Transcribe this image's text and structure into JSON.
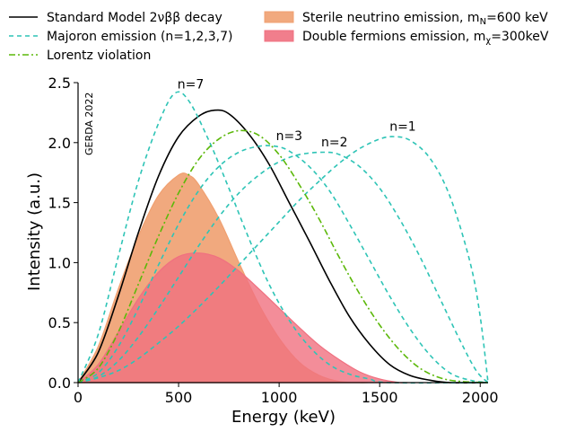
{
  "chart_data": {
    "type": "line",
    "title": "",
    "xlabel": "Energy (keV)",
    "ylabel": "Intensity (a.u.)",
    "xlim": [
      0,
      2039
    ],
    "ylim": [
      0,
      2.5
    ],
    "x_ticks": [
      "0",
      "500",
      "1000",
      "1500",
      "2000"
    ],
    "y_ticks": [
      "0.0",
      "0.5",
      "1.0",
      "1.5",
      "2.0",
      "2.5"
    ],
    "watermark": "GERDA 2022",
    "grid": false,
    "legend_placement": "top",
    "legend": [
      {
        "label": "Standard Model 2νββ decay",
        "style": "solid",
        "color": "#000000"
      },
      {
        "label": "Majoron emission (n=1,2,3,7)",
        "style": "dashed",
        "color": "#2ec4b6"
      },
      {
        "label": "Lorentz violation",
        "style": "dashdot",
        "color": "#5cb80a"
      },
      {
        "label": "Sterile neutrino emission, m",
        "sub": "N",
        "tail": "=600 keV",
        "style": "fill",
        "color": "#f0a070"
      },
      {
        "label": "Double fermions emission, m",
        "sub": "χ",
        "tail": "=300keV",
        "style": "fill",
        "color": "#f07080"
      }
    ],
    "annotations": [
      {
        "text": "n=7",
        "x": 560,
        "y": 2.45
      },
      {
        "text": "n=3",
        "x": 1050,
        "y": 2.02
      },
      {
        "text": "n=2",
        "x": 1275,
        "y": 1.97
      },
      {
        "text": "n=1",
        "x": 1615,
        "y": 2.1
      }
    ],
    "series": [
      {
        "name": "Standard Model 2νββ decay",
        "kind": "line",
        "color": "#000000",
        "dash": "",
        "points": [
          [
            0,
            0
          ],
          [
            100,
            0.25
          ],
          [
            200,
            0.72
          ],
          [
            300,
            1.25
          ],
          [
            400,
            1.72
          ],
          [
            500,
            2.05
          ],
          [
            600,
            2.22
          ],
          [
            680,
            2.27
          ],
          [
            750,
            2.24
          ],
          [
            850,
            2.07
          ],
          [
            950,
            1.82
          ],
          [
            1050,
            1.5
          ],
          [
            1150,
            1.18
          ],
          [
            1250,
            0.85
          ],
          [
            1350,
            0.55
          ],
          [
            1450,
            0.32
          ],
          [
            1550,
            0.15
          ],
          [
            1650,
            0.06
          ],
          [
            1750,
            0.02
          ],
          [
            1850,
            0.0
          ],
          [
            2039,
            0
          ]
        ]
      },
      {
        "name": "Majoron n=7",
        "kind": "line",
        "color": "#2ec4b6",
        "dash": "5,4",
        "points": [
          [
            0,
            0
          ],
          [
            100,
            0.4
          ],
          [
            200,
            1.05
          ],
          [
            300,
            1.68
          ],
          [
            400,
            2.16
          ],
          [
            480,
            2.41
          ],
          [
            550,
            2.35
          ],
          [
            650,
            2.02
          ],
          [
            750,
            1.62
          ],
          [
            850,
            1.2
          ],
          [
            950,
            0.82
          ],
          [
            1050,
            0.52
          ],
          [
            1150,
            0.3
          ],
          [
            1250,
            0.15
          ],
          [
            1350,
            0.07
          ],
          [
            1450,
            0.03
          ],
          [
            1550,
            0.0
          ],
          [
            2039,
            0
          ]
        ]
      },
      {
        "name": "Majoron n=3",
        "kind": "line",
        "color": "#2ec4b6",
        "dash": "5,4",
        "points": [
          [
            0,
            0
          ],
          [
            100,
            0.08
          ],
          [
            200,
            0.3
          ],
          [
            300,
            0.62
          ],
          [
            400,
            0.98
          ],
          [
            500,
            1.32
          ],
          [
            600,
            1.6
          ],
          [
            700,
            1.8
          ],
          [
            800,
            1.92
          ],
          [
            900,
            1.97
          ],
          [
            980,
            1.97
          ],
          [
            1050,
            1.93
          ],
          [
            1150,
            1.8
          ],
          [
            1250,
            1.6
          ],
          [
            1350,
            1.32
          ],
          [
            1450,
            1.02
          ],
          [
            1550,
            0.72
          ],
          [
            1650,
            0.45
          ],
          [
            1750,
            0.23
          ],
          [
            1850,
            0.08
          ],
          [
            1950,
            0.02
          ],
          [
            2039,
            0
          ]
        ]
      },
      {
        "name": "Majoron n=2",
        "kind": "line",
        "color": "#2ec4b6",
        "dash": "5,4",
        "points": [
          [
            0,
            0
          ],
          [
            100,
            0.05
          ],
          [
            200,
            0.18
          ],
          [
            300,
            0.38
          ],
          [
            400,
            0.62
          ],
          [
            500,
            0.88
          ],
          [
            600,
            1.14
          ],
          [
            700,
            1.38
          ],
          [
            800,
            1.58
          ],
          [
            900,
            1.73
          ],
          [
            1000,
            1.84
          ],
          [
            1100,
            1.9
          ],
          [
            1220,
            1.92
          ],
          [
            1300,
            1.9
          ],
          [
            1400,
            1.8
          ],
          [
            1500,
            1.62
          ],
          [
            1600,
            1.36
          ],
          [
            1700,
            1.05
          ],
          [
            1800,
            0.7
          ],
          [
            1900,
            0.35
          ],
          [
            1980,
            0.1
          ],
          [
            2039,
            0
          ]
        ]
      },
      {
        "name": "Majoron n=1",
        "kind": "line",
        "color": "#2ec4b6",
        "dash": "5,4",
        "points": [
          [
            0,
            0
          ],
          [
            100,
            0.04
          ],
          [
            200,
            0.1
          ],
          [
            300,
            0.2
          ],
          [
            400,
            0.33
          ],
          [
            500,
            0.47
          ],
          [
            600,
            0.63
          ],
          [
            700,
            0.8
          ],
          [
            800,
            0.98
          ],
          [
            900,
            1.16
          ],
          [
            1000,
            1.34
          ],
          [
            1100,
            1.52
          ],
          [
            1200,
            1.68
          ],
          [
            1300,
            1.83
          ],
          [
            1400,
            1.95
          ],
          [
            1500,
            2.03
          ],
          [
            1570,
            2.05
          ],
          [
            1650,
            2.02
          ],
          [
            1750,
            1.87
          ],
          [
            1850,
            1.55
          ],
          [
            1950,
            1.0
          ],
          [
            2000,
            0.55
          ],
          [
            2039,
            0
          ]
        ]
      },
      {
        "name": "Lorentz violation",
        "kind": "line",
        "color": "#5cb80a",
        "dash": "7,3,2,3",
        "points": [
          [
            0,
            0
          ],
          [
            100,
            0.12
          ],
          [
            200,
            0.42
          ],
          [
            300,
            0.82
          ],
          [
            400,
            1.22
          ],
          [
            500,
            1.58
          ],
          [
            600,
            1.86
          ],
          [
            700,
            2.03
          ],
          [
            800,
            2.1
          ],
          [
            900,
            2.06
          ],
          [
            1000,
            1.9
          ],
          [
            1100,
            1.65
          ],
          [
            1200,
            1.36
          ],
          [
            1300,
            1.04
          ],
          [
            1400,
            0.74
          ],
          [
            1500,
            0.48
          ],
          [
            1600,
            0.27
          ],
          [
            1700,
            0.12
          ],
          [
            1800,
            0.04
          ],
          [
            1900,
            0.01
          ],
          [
            2039,
            0
          ]
        ]
      },
      {
        "name": "Sterile neutrino emission",
        "kind": "area",
        "color": "#f0a070",
        "opacity": 0.9,
        "points": [
          [
            0,
            0
          ],
          [
            100,
            0.3
          ],
          [
            200,
            0.78
          ],
          [
            300,
            1.22
          ],
          [
            400,
            1.56
          ],
          [
            500,
            1.73
          ],
          [
            550,
            1.73
          ],
          [
            600,
            1.65
          ],
          [
            700,
            1.37
          ],
          [
            800,
            1.0
          ],
          [
            900,
            0.65
          ],
          [
            1000,
            0.37
          ],
          [
            1100,
            0.17
          ],
          [
            1200,
            0.06
          ],
          [
            1300,
            0.01
          ],
          [
            1400,
            0.0
          ],
          [
            1439,
            0
          ]
        ]
      },
      {
        "name": "Double fermions emission",
        "kind": "area",
        "color": "#f07080",
        "opacity": 0.8,
        "points": [
          [
            0,
            0
          ],
          [
            100,
            0.15
          ],
          [
            200,
            0.42
          ],
          [
            300,
            0.7
          ],
          [
            400,
            0.92
          ],
          [
            500,
            1.05
          ],
          [
            600,
            1.08
          ],
          [
            700,
            1.04
          ],
          [
            800,
            0.93
          ],
          [
            900,
            0.78
          ],
          [
            1000,
            0.62
          ],
          [
            1100,
            0.46
          ],
          [
            1200,
            0.31
          ],
          [
            1300,
            0.19
          ],
          [
            1400,
            0.09
          ],
          [
            1500,
            0.03
          ],
          [
            1600,
            0.0
          ],
          [
            1639,
            0
          ]
        ]
      }
    ]
  }
}
